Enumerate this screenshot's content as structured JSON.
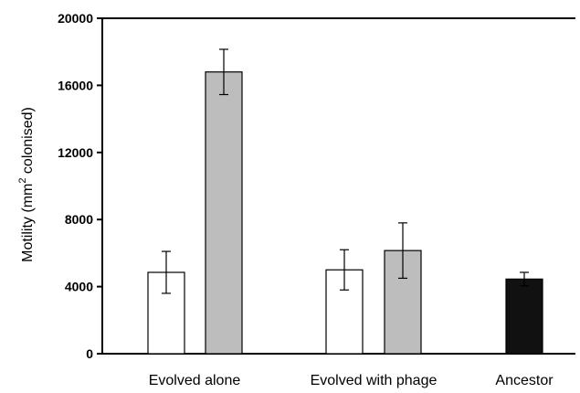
{
  "chart_data": {
    "type": "bar",
    "ylabel": {
      "prefix": "Motility (mm",
      "superscript": "2",
      "suffix": " colonised)"
    },
    "ylim": [
      0,
      20000
    ],
    "yticks": [
      "0",
      "4000",
      "8000",
      "12000",
      "16000",
      "20000"
    ],
    "grid": false,
    "categories": [
      "Evolved alone",
      "Evolved with phage",
      "Ancestor"
    ],
    "bars": [
      {
        "category": "Evolved alone",
        "value": 4850,
        "error": 1250,
        "color": "#ffffff"
      },
      {
        "category": "Evolved alone",
        "value": 16800,
        "error": 1350,
        "color": "#bdbdbd"
      },
      {
        "category": "Evolved with phage",
        "value": 5000,
        "error": 1200,
        "color": "#ffffff"
      },
      {
        "category": "Evolved with phage",
        "value": 6150,
        "error": 1650,
        "color": "#bdbdbd"
      },
      {
        "category": "Ancestor",
        "value": 4450,
        "error": 400,
        "color": "#111111"
      }
    ]
  }
}
